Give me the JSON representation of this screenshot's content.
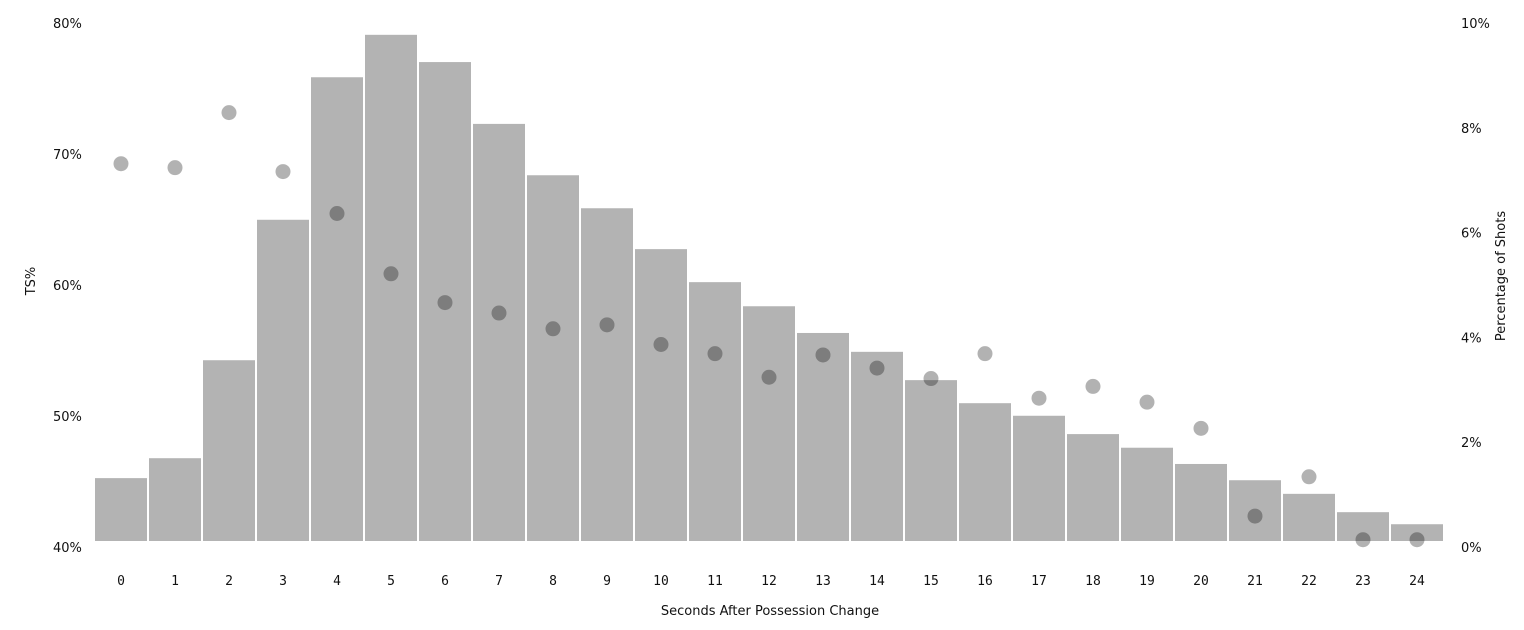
{
  "chart_data": {
    "type": "bar",
    "title": "",
    "xlabel": "Seconds After Possession Change",
    "ylabel": "TS%",
    "y2label": "Percentage of Shots",
    "categories": [
      "0",
      "1",
      "2",
      "3",
      "4",
      "5",
      "6",
      "7",
      "8",
      "9",
      "10",
      "11",
      "12",
      "13",
      "14",
      "15",
      "16",
      "17",
      "18",
      "19",
      "20",
      "21",
      "22",
      "23",
      "24"
    ],
    "ylim": [
      40,
      80
    ],
    "y2lim": [
      0,
      10
    ],
    "yticks": [
      "40%",
      "50%",
      "60%",
      "70%",
      "80%"
    ],
    "y2ticks": [
      "0%",
      "2%",
      "4%",
      "6%",
      "8%",
      "10%"
    ],
    "grid": false,
    "series": [
      {
        "name": "Percentage of Shots",
        "type": "bar",
        "axis": "right",
        "color": "#b3b3b3",
        "values": [
          1.2,
          1.58,
          3.45,
          6.13,
          8.85,
          9.66,
          9.14,
          7.96,
          6.98,
          6.35,
          5.57,
          4.94,
          4.48,
          3.97,
          3.61,
          3.07,
          2.63,
          2.39,
          2.04,
          1.78,
          1.47,
          1.16,
          0.9,
          0.55,
          0.32
        ]
      },
      {
        "name": "TS%",
        "type": "scatter",
        "axis": "left",
        "color": "#b3b3b3",
        "values": [
          68.8,
          68.5,
          72.7,
          68.2,
          65.0,
          60.4,
          58.2,
          57.4,
          56.2,
          56.5,
          55.0,
          54.3,
          52.5,
          54.2,
          53.2,
          52.4,
          54.3,
          50.9,
          51.8,
          50.6,
          48.6,
          41.9,
          44.9,
          40.1,
          40.1
        ]
      }
    ]
  }
}
